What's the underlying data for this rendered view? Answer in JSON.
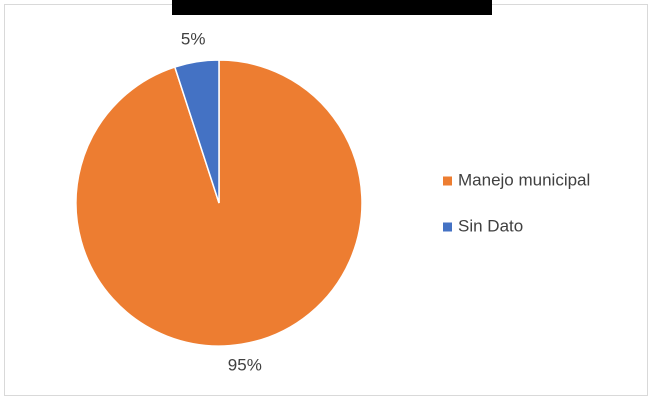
{
  "chart_data": {
    "type": "pie",
    "categories": [
      "Manejo municipal",
      "Sin Dato"
    ],
    "values": [
      95,
      5
    ],
    "value_labels": [
      "95%",
      "5%"
    ],
    "colors": [
      "#ed7d31",
      "#4472c4"
    ],
    "legend": "right"
  }
}
